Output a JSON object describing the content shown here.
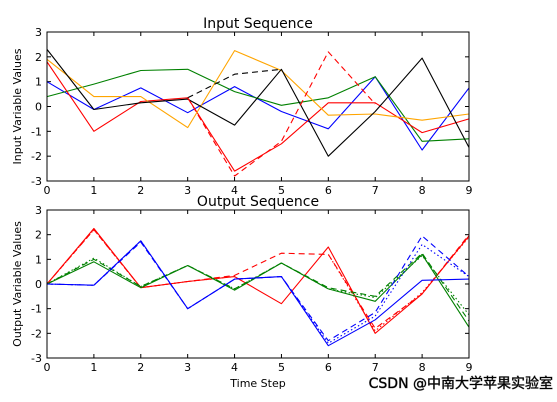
{
  "watermark": "CSDN @中南大学苹果实验室",
  "chart_data": [
    {
      "type": "line",
      "title": "Input Sequence",
      "xlabel": "",
      "ylabel": "Input Variable Values",
      "xlim": [
        0,
        9
      ],
      "ylim": [
        -3,
        3
      ],
      "x": [
        0,
        1,
        2,
        3,
        4,
        5,
        6,
        7,
        8,
        9
      ],
      "xticks": [
        "0",
        "1",
        "2",
        "3",
        "4",
        "5",
        "6",
        "7",
        "8",
        "9"
      ],
      "yticks": [
        "-3",
        "-2",
        "-1",
        "0",
        "1",
        "2",
        "3"
      ],
      "grid": false,
      "series": [
        {
          "color": "#0000ff",
          "dash": "solid",
          "values": [
            1.0,
            -0.12,
            0.75,
            -0.25,
            0.8,
            -0.2,
            -0.9,
            1.2,
            -1.75,
            0.75
          ]
        },
        {
          "color": "#008000",
          "dash": "solid",
          "values": [
            0.4,
            0.9,
            1.45,
            1.5,
            0.6,
            0.05,
            0.35,
            1.2,
            -1.4,
            -1.3
          ]
        },
        {
          "color": "#ff0000",
          "dash": "solid",
          "values": [
            1.8,
            -1.0,
            0.2,
            0.35,
            -2.6,
            -1.5,
            0.15,
            0.15,
            -1.05,
            -0.5
          ]
        },
        {
          "color": "#ffa500",
          "dash": "solid",
          "values": [
            1.9,
            0.4,
            0.4,
            -0.85,
            2.25,
            1.45,
            -0.35,
            -0.3,
            -0.55,
            -0.3
          ]
        },
        {
          "color": "#000000",
          "dash": "solid",
          "values": [
            2.3,
            -0.12,
            0.15,
            0.3,
            -0.75,
            1.5,
            -2.0,
            -0.2,
            1.95,
            -1.65
          ]
        },
        {
          "color": "#000000",
          "dash": "dashed",
          "values": [
            null,
            null,
            null,
            0.35,
            1.3,
            1.5,
            null,
            null,
            null,
            null
          ]
        },
        {
          "color": "#ff0000",
          "dash": "dashed",
          "values": [
            null,
            null,
            null,
            0.35,
            -2.8,
            -1.4,
            2.2,
            0.1,
            null,
            null
          ]
        },
        {
          "color": "#0000ff",
          "dash": "dashed",
          "values": [
            null,
            null,
            null,
            null,
            0.95,
            null,
            null,
            null,
            null,
            null
          ]
        }
      ]
    },
    {
      "type": "line",
      "title": "Output Sequence",
      "xlabel": "Time Step",
      "ylabel": "Output Variable Values",
      "xlim": [
        0,
        9
      ],
      "ylim": [
        -3,
        3
      ],
      "x": [
        0,
        1,
        2,
        3,
        4,
        5,
        6,
        7,
        8,
        9
      ],
      "xticks": [
        "0",
        "1",
        "2",
        "3",
        "4",
        "5",
        "6",
        "7",
        "8",
        "9"
      ],
      "yticks": [
        "-3",
        "-2",
        "-1",
        "0",
        "1",
        "2",
        "3"
      ],
      "grid": false,
      "series": [
        {
          "color": "#ff0000",
          "dash": "solid",
          "values": [
            0.0,
            2.25,
            -0.15,
            0.1,
            0.3,
            -0.8,
            1.5,
            -2.0,
            -0.4,
            1.95
          ]
        },
        {
          "color": "#ff0000",
          "dash": "dashed",
          "values": [
            0.0,
            2.2,
            -0.15,
            0.1,
            0.35,
            1.25,
            1.2,
            -1.8,
            -0.4,
            2.0
          ]
        },
        {
          "color": "#ff0000",
          "dash": "dotted",
          "values": [
            0.0,
            2.2,
            -0.15,
            0.1,
            0.3,
            null,
            1.2,
            -1.9,
            -0.35,
            1.9
          ]
        },
        {
          "color": "#008000",
          "dash": "solid",
          "values": [
            0.0,
            0.9,
            -0.15,
            0.75,
            -0.25,
            0.85,
            -0.2,
            -0.7,
            1.2,
            -1.75
          ]
        },
        {
          "color": "#008000",
          "dash": "dashed",
          "values": [
            0.0,
            1.0,
            -0.1,
            0.75,
            -0.2,
            0.85,
            -0.15,
            -0.5,
            1.25,
            -1.5
          ]
        },
        {
          "color": "#008000",
          "dash": "dotted",
          "values": [
            0.0,
            1.05,
            -0.1,
            0.75,
            -0.2,
            0.85,
            -0.2,
            -0.55,
            1.15,
            -1.25
          ]
        },
        {
          "color": "#0000ff",
          "dash": "solid",
          "values": [
            0.0,
            -0.05,
            1.75,
            -1.0,
            0.2,
            0.3,
            -2.5,
            -1.45,
            0.15,
            0.2
          ]
        },
        {
          "color": "#0000ff",
          "dash": "dashed",
          "values": [
            0.0,
            -0.05,
            1.7,
            -1.0,
            0.2,
            0.3,
            -2.3,
            -1.15,
            1.95,
            0.3
          ]
        },
        {
          "color": "#0000ff",
          "dash": "dotted",
          "values": [
            0.0,
            -0.05,
            1.75,
            -1.0,
            0.2,
            0.3,
            -2.4,
            -1.3,
            1.6,
            0.3
          ]
        }
      ]
    }
  ]
}
